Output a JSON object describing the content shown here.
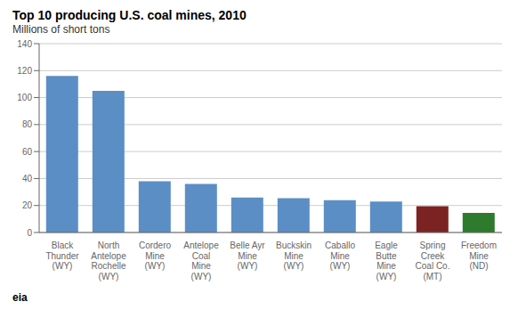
{
  "chart_data": {
    "type": "bar",
    "title": "Top 10 producing U.S. coal mines, 2010",
    "ylabel": "Millions of short tons",
    "categories": [
      "Black\nThunder\n(WY)",
      "North\nAntelope\nRochelle\n(WY)",
      "Cordero\nMine\n(WY)",
      "Antelope\nCoal\nMine\n(WY)",
      "Belle Ayr\nMine\n(WY)",
      "Buckskin\nMine\n(WY)",
      "Caballo\nMine\n(WY)",
      "Eagle\nButte\nMine\n(WY)",
      "Spring\nCreek\nCoal Co.\n(MT)",
      "Freedom\nMine\n(ND)"
    ],
    "values": [
      116,
      105,
      38,
      36,
      26,
      25.5,
      24,
      23,
      19.5,
      14.5
    ],
    "colors": [
      "#5B8EC4",
      "#5B8EC4",
      "#5B8EC4",
      "#5B8EC4",
      "#5B8EC4",
      "#5B8EC4",
      "#5B8EC4",
      "#5B8EC4",
      "#7B2323",
      "#2E7B2E"
    ],
    "ylim": [
      0,
      140
    ],
    "yticks": [
      0,
      20,
      40,
      60,
      80,
      100,
      120,
      140
    ],
    "grid": true,
    "annotations": [
      "eia"
    ]
  }
}
